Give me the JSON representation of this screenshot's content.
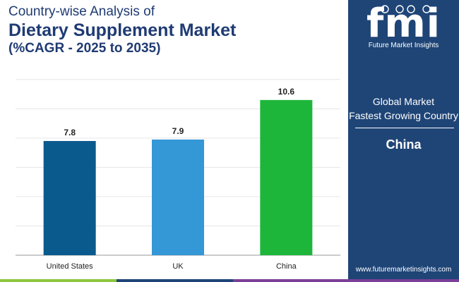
{
  "title": {
    "line1": "Country-wise Analysis of",
    "line2": "Dietary Supplement Market",
    "line3": "(%CAGR - 2025 to 2035)"
  },
  "chart_data": {
    "type": "bar",
    "categories": [
      "United States",
      "UK",
      "China"
    ],
    "values": [
      7.8,
      7.9,
      10.6
    ],
    "bar_colors": [
      "#0b5a8e",
      "#3497d6",
      "#1db63b"
    ],
    "ylim": [
      0,
      13
    ],
    "gridlines": true,
    "xlabel": "",
    "ylabel": ""
  },
  "panel": {
    "logo_text": "fmi",
    "logo_caption": "Future Market Insights",
    "label_line1": "Global Market",
    "label_line2": "Fastest Growing Country",
    "country": "China",
    "url": "www.futuremarketinsights.com"
  },
  "colors": {
    "title": "#1f3b73",
    "panel_bg": "#1f4577",
    "band": [
      "#8dc63f",
      "#1f4577",
      "#7b3f98"
    ]
  }
}
